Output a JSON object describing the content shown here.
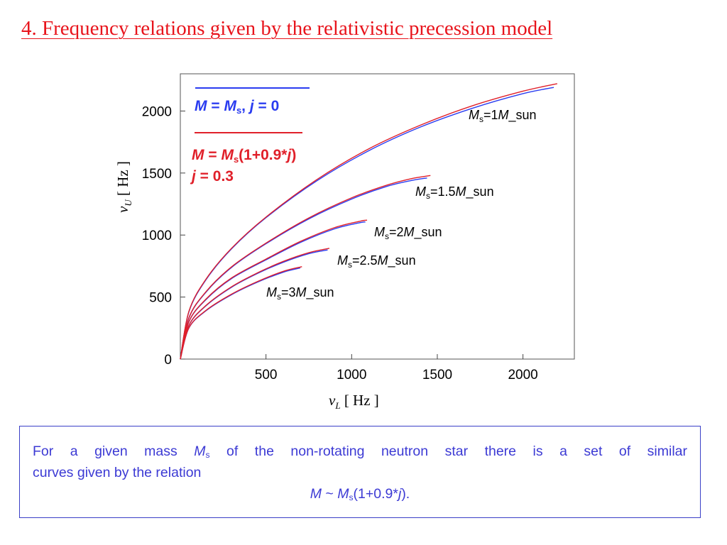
{
  "title": "4. Frequency relations given by the relativistic precession model",
  "legend": {
    "blue": {
      "m": "M",
      "eq": " = ",
      "ms": "M",
      "sub": "s",
      "rest": ",  ",
      "j": "j",
      "jval": " = 0"
    },
    "red": {
      "m": "M",
      "eq": " = ",
      "ms": "M",
      "sub": "s",
      "rest1": "(1+0.9*",
      "j": "j",
      "rest2": ")",
      "line2_j": "j",
      "line2_val": " = 0.3"
    }
  },
  "curve_labels": [
    {
      "pre": "M",
      "sub": "s",
      "mid": "=1",
      "m": "M",
      "post": "_sun"
    },
    {
      "pre": "M",
      "sub": "s",
      "mid": "=1.5",
      "m": "M",
      "post": "_sun"
    },
    {
      "pre": "M",
      "sub": "s",
      "mid": "=2",
      "m": "M",
      "post": "_sun"
    },
    {
      "pre": "M",
      "sub": "s",
      "mid": "=2.5",
      "m": "M",
      "post": "_sun"
    },
    {
      "pre": "M",
      "sub": "s",
      "mid": "=3",
      "m": "M",
      "post": "_sun"
    }
  ],
  "note": {
    "line1_a": "For a given mass ",
    "ms_m": "M",
    "ms_sub": "s",
    "line1_b": " of the non-rotating  neutron star there is a set of similar",
    "line2": "curves given by the relation",
    "rel_m": "M",
    "rel_tilde": " ~ ",
    "rel_ms": "M",
    "rel_sub": "s",
    "rel_a": "(1+0.9*",
    "rel_j": "j",
    "rel_b": ")."
  },
  "chart_data": {
    "type": "line",
    "xlabel": "ν_L [Hz]",
    "ylabel": "ν_U [Hz]",
    "xlim": [
      0,
      2300
    ],
    "ylim": [
      0,
      2300
    ],
    "xticks": [
      500,
      1000,
      1500,
      2000
    ],
    "yticks": [
      0,
      500,
      1000,
      1500,
      2000
    ],
    "colors": {
      "blue": "#2a3cf0",
      "red": "#e0202a",
      "axis": "#000000",
      "title": "#e8141c",
      "note": "#3c3ad4"
    },
    "series": [
      {
        "name": "M = Ms, j = 0",
        "color": "blue",
        "curves": [
          {
            "x": [
              0,
              50,
              150,
              300,
              500,
              800,
              1100,
              1400,
              1700,
              2000,
              2180
            ],
            "y": [
              0,
              380,
              640,
              890,
              1140,
              1440,
              1680,
              1870,
              2020,
              2140,
              2190
            ]
          },
          {
            "x": [
              0,
              50,
              150,
              300,
              500,
              750,
              1000,
              1200,
              1350,
              1440
            ],
            "y": [
              0,
              330,
              540,
              740,
              930,
              1130,
              1290,
              1390,
              1440,
              1460
            ]
          },
          {
            "x": [
              0,
              50,
              150,
              300,
              500,
              700,
              900,
              1050,
              1080
            ],
            "y": [
              0,
              300,
              480,
              650,
              800,
              940,
              1050,
              1100,
              1105
            ]
          },
          {
            "x": [
              0,
              50,
              150,
              300,
              450,
              600,
              750,
              860
            ],
            "y": [
              0,
              270,
              430,
              580,
              690,
              780,
              850,
              880
            ]
          },
          {
            "x": [
              0,
              50,
              150,
              300,
              450,
              600,
              700
            ],
            "y": [
              0,
              250,
              390,
              520,
              620,
              700,
              735
            ]
          }
        ]
      },
      {
        "name": "M = Ms(1+0.9*j), j = 0.3",
        "color": "red",
        "curves": [
          {
            "x": [
              0,
              50,
              150,
              300,
              500,
              800,
              1100,
              1400,
              1700,
              2000,
              2200
            ],
            "y": [
              0,
              385,
              645,
              895,
              1145,
              1450,
              1695,
              1885,
              2040,
              2160,
              2220
            ]
          },
          {
            "x": [
              0,
              50,
              150,
              300,
              500,
              750,
              1000,
              1200,
              1350,
              1460
            ],
            "y": [
              0,
              333,
              544,
              745,
              935,
              1138,
              1300,
              1400,
              1455,
              1480
            ]
          },
          {
            "x": [
              0,
              50,
              150,
              300,
              500,
              700,
              900,
              1050,
              1090
            ],
            "y": [
              0,
              302,
              484,
              655,
              806,
              948,
              1060,
              1112,
              1120
            ]
          },
          {
            "x": [
              0,
              50,
              150,
              300,
              450,
              600,
              750,
              870
            ],
            "y": [
              0,
              272,
              433,
              584,
              695,
              787,
              858,
              893
            ]
          },
          {
            "x": [
              0,
              50,
              150,
              300,
              450,
              600,
              710
            ],
            "y": [
              0,
              252,
              393,
              524,
              625,
              707,
              745
            ]
          }
        ]
      }
    ]
  }
}
